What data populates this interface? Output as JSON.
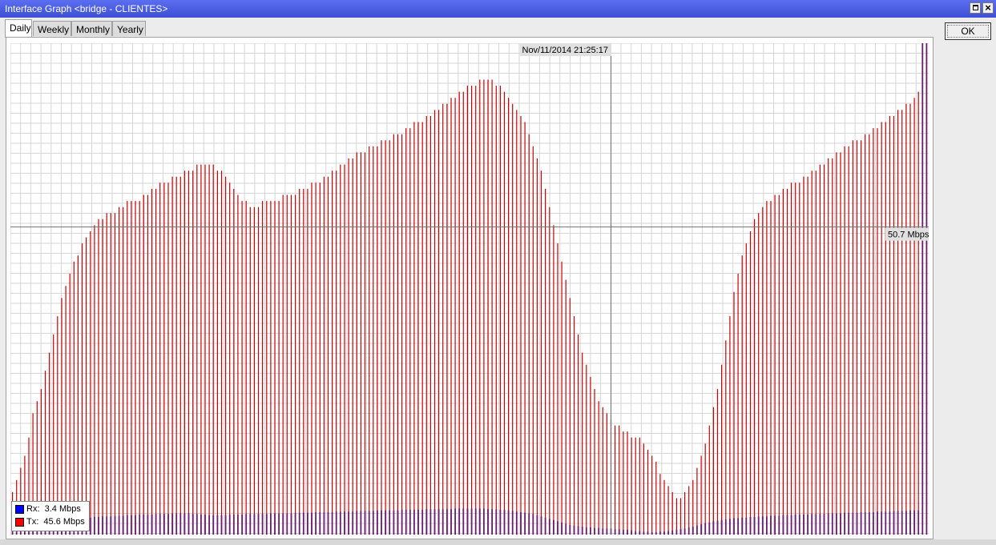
{
  "window": {
    "title": "Interface Graph <bridge - CLIENTES>"
  },
  "tabs": [
    {
      "label": "Daily",
      "active": true
    },
    {
      "label": "Weekly",
      "active": false
    },
    {
      "label": "Monthly",
      "active": false
    },
    {
      "label": "Yearly",
      "active": false
    }
  ],
  "buttons": {
    "ok_label": "OK"
  },
  "icons": {
    "restore": "restore-icon",
    "close": "close-icon"
  },
  "cursor_readout": {
    "time": "Nov/11/2014 21:25:17",
    "value": "50.7 Mbps"
  },
  "legend": [
    {
      "key": "rx",
      "label": "Rx:",
      "value": "3.4 Mbps",
      "color": "#0000ff"
    },
    {
      "key": "tx",
      "label": "Tx:",
      "value": "45.6 Mbps",
      "color": "#ff0000"
    }
  ],
  "chart_data": {
    "type": "bar",
    "unit": "Mbps",
    "ylim": [
      0,
      81
    ],
    "grid": true,
    "cursor": {
      "x_index": 146,
      "y_value": 50.7
    },
    "series": [
      {
        "key": "tx",
        "color": "#cc0000",
        "values": [
          7,
          9,
          11,
          13,
          16,
          20,
          22,
          24,
          27,
          30,
          33,
          36,
          39,
          41,
          43,
          45,
          46,
          48,
          49,
          50,
          51,
          52,
          52,
          53,
          53,
          53,
          54,
          54,
          55,
          55,
          55,
          55,
          56,
          56,
          57,
          57,
          58,
          58,
          58,
          59,
          59,
          59,
          60,
          60,
          60,
          61,
          61,
          61,
          61,
          61,
          60,
          60,
          59,
          58,
          57,
          56,
          55,
          55,
          54,
          54,
          54,
          55,
          55,
          55,
          55,
          55,
          56,
          56,
          56,
          56,
          57,
          57,
          57,
          58,
          58,
          58,
          59,
          59,
          60,
          60,
          61,
          61,
          62,
          62,
          63,
          63,
          63,
          64,
          64,
          64,
          65,
          65,
          65,
          66,
          66,
          66,
          67,
          67,
          68,
          68,
          68,
          69,
          69,
          70,
          70,
          71,
          71,
          72,
          72,
          73,
          73,
          74,
          74,
          74,
          75,
          75,
          75,
          75,
          74,
          74,
          73,
          72,
          71,
          70,
          69,
          68,
          66,
          64,
          62,
          60,
          57,
          54,
          51,
          48,
          45,
          42,
          39,
          36,
          33,
          30,
          28,
          26,
          24,
          22,
          21,
          20,
          19,
          18,
          18,
          17,
          17,
          16,
          16,
          16,
          15,
          14,
          13,
          12,
          10,
          9,
          8,
          7,
          6,
          6,
          7,
          8,
          9,
          11,
          13,
          15,
          18,
          21,
          24,
          28,
          32,
          36,
          40,
          43,
          46,
          48,
          50,
          52,
          53,
          54,
          55,
          55,
          56,
          56,
          57,
          57,
          58,
          58,
          58,
          59,
          59,
          60,
          60,
          61,
          61,
          62,
          62,
          63,
          63,
          64,
          64,
          65,
          65,
          65,
          66,
          66,
          67,
          67,
          68,
          68,
          69,
          69,
          70,
          70,
          71,
          71,
          72,
          73,
          74,
          75
        ]
      },
      {
        "key": "rx",
        "color": "#0000cc",
        "values": [
          1.2,
          1.3,
          1.4,
          1.5,
          1.6,
          1.7,
          1.8,
          1.9,
          2.0,
          2.1,
          2.2,
          2.3,
          2.4,
          2.5,
          2.6,
          2.6,
          2.7,
          2.7,
          2.8,
          2.8,
          2.9,
          2.9,
          3.0,
          3.0,
          3.0,
          3.1,
          3.1,
          3.1,
          3.2,
          3.2,
          3.2,
          3.3,
          3.3,
          3.3,
          3.3,
          3.4,
          3.4,
          3.4,
          3.4,
          3.5,
          3.5,
          3.5,
          3.5,
          3.5,
          3.4,
          3.4,
          3.3,
          3.3,
          3.2,
          3.2,
          3.2,
          3.2,
          3.2,
          3.3,
          3.3,
          3.3,
          3.3,
          3.4,
          3.4,
          3.4,
          3.4,
          3.4,
          3.4,
          3.5,
          3.5,
          3.5,
          3.5,
          3.5,
          3.5,
          3.6,
          3.6,
          3.6,
          3.6,
          3.6,
          3.7,
          3.7,
          3.7,
          3.7,
          3.7,
          3.8,
          3.8,
          3.8,
          3.8,
          3.8,
          3.9,
          3.9,
          3.9,
          3.9,
          3.9,
          4.0,
          4.0,
          4.0,
          4.0,
          4.0,
          4.0,
          4.1,
          4.1,
          4.1,
          4.1,
          4.1,
          4.1,
          4.2,
          4.2,
          4.2,
          4.2,
          4.2,
          4.2,
          4.2,
          4.3,
          4.3,
          4.3,
          4.3,
          4.3,
          4.3,
          4.3,
          4.3,
          4.2,
          4.2,
          4.2,
          4.1,
          4.1,
          4.0,
          3.9,
          3.8,
          3.7,
          3.6,
          3.5,
          3.4,
          3.2,
          3.0,
          2.8,
          2.6,
          2.4,
          2.2,
          2.0,
          1.8,
          1.6,
          1.5,
          1.4,
          1.3,
          1.2,
          1.2,
          1.1,
          1.1,
          1.0,
          1.0,
          1.0,
          0.9,
          0.9,
          0.8,
          0.8,
          0.7,
          0.6,
          0.6,
          0.5,
          0.5,
          0.4,
          0.4,
          0.5,
          0.5,
          0.6,
          0.7,
          0.8,
          0.9,
          1.0,
          1.2,
          1.3,
          1.5,
          1.7,
          1.9,
          2.0,
          2.2,
          2.3,
          2.4,
          2.5,
          2.6,
          2.7,
          2.7,
          2.8,
          2.8,
          2.9,
          2.9,
          3.0,
          3.0,
          3.0,
          3.1,
          3.1,
          3.1,
          3.2,
          3.2,
          3.2,
          3.3,
          3.3,
          3.3,
          3.3,
          3.4,
          3.4,
          3.4,
          3.4,
          3.5,
          3.5,
          3.5,
          3.5,
          3.6,
          3.6,
          3.6,
          3.6,
          3.7,
          3.7,
          3.7,
          3.7,
          3.8,
          3.8,
          3.8,
          3.8,
          3.9,
          3.9,
          3.9,
          3.9,
          4.0,
          4.0,
          4.0
        ]
      }
    ]
  }
}
